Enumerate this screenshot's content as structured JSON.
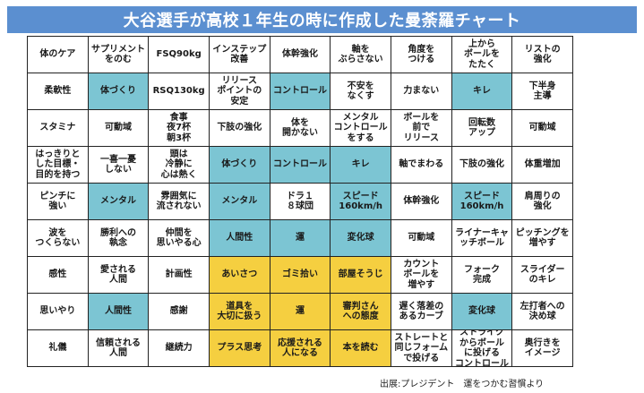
{
  "title": "大谷選手が高校１年生の時に作成した曼荼羅チャート",
  "source": "出展:プレジデント　運をつかむ習慣より",
  "colors": {
    "title_bg": "#5b8fd0",
    "cyan": "#7cc5d3",
    "yellow": "#f5cf40"
  },
  "rows": [
    [
      {
        "t": "体のケア",
        "c": "w"
      },
      {
        "t": "サプリメント\nをのむ",
        "c": "w"
      },
      {
        "t": "FSQ90kg",
        "c": "w"
      },
      {
        "t": "インステップ\n改善",
        "c": "w"
      },
      {
        "t": "体幹強化",
        "c": "w"
      },
      {
        "t": "軸を\nぶらさない",
        "c": "w"
      },
      {
        "t": "角度を\nつける",
        "c": "w"
      },
      {
        "t": "上から\nボールを\nたたく",
        "c": "w"
      },
      {
        "t": "リストの\n強化",
        "c": "w"
      }
    ],
    [
      {
        "t": "柔軟性",
        "c": "w"
      },
      {
        "t": "体づくり",
        "c": "c"
      },
      {
        "t": "RSQ130kg",
        "c": "w"
      },
      {
        "t": "リリース\nポイントの\n安定",
        "c": "w"
      },
      {
        "t": "コントロール",
        "c": "c"
      },
      {
        "t": "不安を\nなくす",
        "c": "w"
      },
      {
        "t": "力まない",
        "c": "w"
      },
      {
        "t": "キレ",
        "c": "c"
      },
      {
        "t": "下半身\n主導",
        "c": "w"
      }
    ],
    [
      {
        "t": "スタミナ",
        "c": "w"
      },
      {
        "t": "可動域",
        "c": "w"
      },
      {
        "t": "食事\n夜7杯\n朝3杯",
        "c": "w"
      },
      {
        "t": "下肢の強化",
        "c": "w"
      },
      {
        "t": "体を\n開かない",
        "c": "w"
      },
      {
        "t": "メンタル\nコントロール\nをする",
        "c": "w"
      },
      {
        "t": "ボールを\n前で\nリリース",
        "c": "w"
      },
      {
        "t": "回転数\nアップ",
        "c": "w"
      },
      {
        "t": "可動域",
        "c": "w"
      }
    ],
    [
      {
        "t": "はっきりと\nした目標・\n目的を持つ",
        "c": "w"
      },
      {
        "t": "一喜一憂\nしない",
        "c": "w"
      },
      {
        "t": "頭は\n冷静に\n心は熱く",
        "c": "w"
      },
      {
        "t": "体づくり",
        "c": "c"
      },
      {
        "t": "コントロール",
        "c": "c"
      },
      {
        "t": "キレ",
        "c": "c"
      },
      {
        "t": "軸でまわる",
        "c": "w"
      },
      {
        "t": "下肢の強化",
        "c": "w"
      },
      {
        "t": "体重増加",
        "c": "w"
      }
    ],
    [
      {
        "t": "ピンチに\n強い",
        "c": "w"
      },
      {
        "t": "メンタル",
        "c": "c"
      },
      {
        "t": "雰囲気に\n流されない",
        "c": "w"
      },
      {
        "t": "メンタル",
        "c": "c"
      },
      {
        "t": "ドラ１\n８球団",
        "c": "w"
      },
      {
        "t": "スピード\n160km/h",
        "c": "c"
      },
      {
        "t": "体幹強化",
        "c": "w"
      },
      {
        "t": "スピード\n160km/h",
        "c": "c"
      },
      {
        "t": "肩周りの\n強化",
        "c": "w"
      }
    ],
    [
      {
        "t": "波を\nつくらない",
        "c": "w"
      },
      {
        "t": "勝利への\n執念",
        "c": "w"
      },
      {
        "t": "仲間を\n思いやる心",
        "c": "w"
      },
      {
        "t": "人間性",
        "c": "c"
      },
      {
        "t": "運",
        "c": "c"
      },
      {
        "t": "変化球",
        "c": "c"
      },
      {
        "t": "可動域",
        "c": "w"
      },
      {
        "t": "ライナーキャ\nッチボール",
        "c": "w"
      },
      {
        "t": "ピッチングを\n増やす",
        "c": "w"
      }
    ],
    [
      {
        "t": "感性",
        "c": "w"
      },
      {
        "t": "愛される\n人間",
        "c": "w"
      },
      {
        "t": "計画性",
        "c": "w"
      },
      {
        "t": "あいさつ",
        "c": "y"
      },
      {
        "t": "ゴミ拾い",
        "c": "y"
      },
      {
        "t": "部屋そうじ",
        "c": "y"
      },
      {
        "t": "カウント\nボールを\n増やす",
        "c": "w"
      },
      {
        "t": "フォーク\n完成",
        "c": "w"
      },
      {
        "t": "スライダー\nのキレ",
        "c": "w"
      }
    ],
    [
      {
        "t": "思いやり",
        "c": "w"
      },
      {
        "t": "人間性",
        "c": "c"
      },
      {
        "t": "感謝",
        "c": "w"
      },
      {
        "t": "道具を\n大切に扱う",
        "c": "y"
      },
      {
        "t": "運",
        "c": "y"
      },
      {
        "t": "審判さん\nへの態度",
        "c": "y"
      },
      {
        "t": "遅く落差の\nあるカーブ",
        "c": "w"
      },
      {
        "t": "変化球",
        "c": "c"
      },
      {
        "t": "左打者への\n決め球",
        "c": "w"
      }
    ],
    [
      {
        "t": "礼儀",
        "c": "w"
      },
      {
        "t": "信頼される\n人間",
        "c": "w"
      },
      {
        "t": "継続力",
        "c": "w"
      },
      {
        "t": "プラス思考",
        "c": "y"
      },
      {
        "t": "応援される\n人になる",
        "c": "y"
      },
      {
        "t": "本を読む",
        "c": "y"
      },
      {
        "t": "ストレートと\n同じフォーム\nで投げる",
        "c": "w"
      },
      {
        "t": "ストライク\nからボール\nに投げる\nコントロール",
        "c": "w"
      },
      {
        "t": "奥行きを\nイメージ",
        "c": "w"
      }
    ]
  ]
}
